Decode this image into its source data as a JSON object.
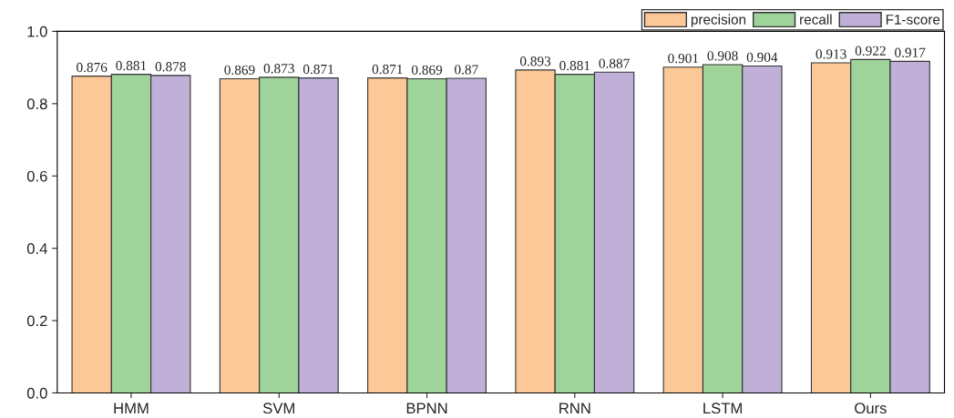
{
  "chart_data": {
    "type": "bar",
    "categories": [
      "HMM",
      "SVM",
      "BPNN",
      "RNN",
      "LSTM",
      "Ours"
    ],
    "series": [
      {
        "name": "precision",
        "color": "#fdc897",
        "values": [
          0.876,
          0.869,
          0.871,
          0.893,
          0.901,
          0.913
        ]
      },
      {
        "name": "recall",
        "color": "#9ed39a",
        "values": [
          0.881,
          0.873,
          0.869,
          0.881,
          0.908,
          0.922
        ]
      },
      {
        "name": "F1-score",
        "color": "#c0b0d8",
        "values": [
          0.878,
          0.871,
          0.87,
          0.887,
          0.904,
          0.917
        ]
      }
    ],
    "ylim": [
      0,
      1.0
    ],
    "yticks": [
      {
        "value": 0,
        "label": "0.0"
      },
      {
        "value": 0.2,
        "label": "0.2"
      },
      {
        "value": 0.4,
        "label": "0.4"
      },
      {
        "value": 0.6,
        "label": "0.6"
      },
      {
        "value": 0.8,
        "label": "0.8"
      },
      {
        "value": 1.0,
        "label": "1.0"
      }
    ],
    "data_labels": true,
    "legend": "top right",
    "grid": false
  }
}
